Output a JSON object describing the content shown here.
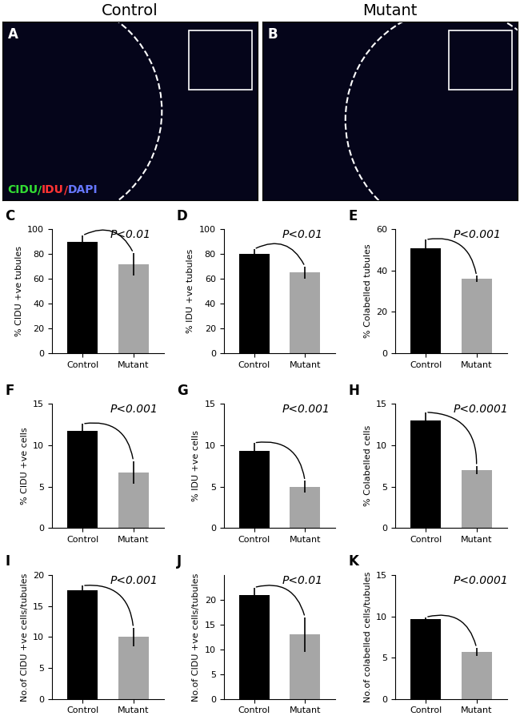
{
  "figure": {
    "image_panels": [
      {
        "panel": "A",
        "title": "Control"
      },
      {
        "panel": "B",
        "title": "Mutant"
      }
    ],
    "stain_label": {
      "parts": [
        "CIDU",
        "/",
        "IDU",
        "/",
        "DAPI"
      ],
      "colors": [
        "#33dd33",
        "#33dd33",
        "#ff3333",
        "#ff3333",
        "#6677ff"
      ]
    }
  },
  "chart_data": [
    {
      "type": "bar",
      "panel": "C",
      "ylabel": "% CIDU +ve tubules",
      "categories": [
        "Control",
        "Mutant"
      ],
      "values": [
        90,
        72
      ],
      "errors": [
        5,
        9
      ],
      "colors": [
        "#000000",
        "#a6a6a6"
      ],
      "ylim": [
        0,
        100
      ],
      "yticks": [
        0,
        20,
        40,
        60,
        80,
        100
      ],
      "annotation": "P<0.01"
    },
    {
      "type": "bar",
      "panel": "D",
      "ylabel": "% IDU +ve tubules",
      "categories": [
        "Control",
        "Mutant"
      ],
      "values": [
        80,
        65
      ],
      "errors": [
        4,
        5
      ],
      "colors": [
        "#000000",
        "#a6a6a6"
      ],
      "ylim": [
        0,
        100
      ],
      "yticks": [
        0,
        20,
        40,
        60,
        80,
        100
      ],
      "annotation": "P<0.01"
    },
    {
      "type": "bar",
      "panel": "E",
      "ylabel": "% Colabelled tubules",
      "categories": [
        "Control",
        "Mutant"
      ],
      "values": [
        51,
        36
      ],
      "errors": [
        4,
        1.5
      ],
      "colors": [
        "#000000",
        "#a6a6a6"
      ],
      "ylim": [
        0,
        60
      ],
      "yticks": [
        0,
        20,
        40,
        60
      ],
      "annotation": "P<0.001"
    },
    {
      "type": "bar",
      "panel": "F",
      "ylabel": "% CIDU +ve cells",
      "categories": [
        "Control",
        "Mutant"
      ],
      "values": [
        11.7,
        6.7
      ],
      "errors": [
        0.9,
        1.4
      ],
      "colors": [
        "#000000",
        "#a6a6a6"
      ],
      "ylim": [
        0,
        15
      ],
      "yticks": [
        0,
        5,
        10,
        15
      ],
      "annotation": "P<0.001"
    },
    {
      "type": "bar",
      "panel": "G",
      "ylabel": "% IDU +ve cells",
      "categories": [
        "Control",
        "Mutant"
      ],
      "values": [
        9.3,
        5.0
      ],
      "errors": [
        1.0,
        0.7
      ],
      "colors": [
        "#000000",
        "#a6a6a6"
      ],
      "ylim": [
        0,
        15
      ],
      "yticks": [
        0,
        5,
        10,
        15
      ],
      "annotation": "P<0.001"
    },
    {
      "type": "bar",
      "panel": "H",
      "ylabel": "% Colabelled cells",
      "categories": [
        "Control",
        "Mutant"
      ],
      "values": [
        13,
        7
      ],
      "errors": [
        1,
        0.5
      ],
      "colors": [
        "#000000",
        "#a6a6a6"
      ],
      "ylim": [
        0,
        15
      ],
      "yticks": [
        0,
        5,
        10,
        15
      ],
      "annotation": "P<0.0001"
    },
    {
      "type": "bar",
      "panel": "I",
      "ylabel": "No.of CIDU +ve cells/tubules",
      "categories": [
        "Control",
        "Mutant"
      ],
      "values": [
        17.5,
        10
      ],
      "errors": [
        0.8,
        1.5
      ],
      "colors": [
        "#000000",
        "#a6a6a6"
      ],
      "ylim": [
        0,
        20
      ],
      "yticks": [
        0,
        5,
        10,
        15,
        20
      ],
      "annotation": "P<0.001"
    },
    {
      "type": "bar",
      "panel": "J",
      "ylabel": "No.of CIDU +ve cells/tubules",
      "categories": [
        "Control",
        "Mutant"
      ],
      "values": [
        21,
        13
      ],
      "errors": [
        1.5,
        3.5
      ],
      "colors": [
        "#000000",
        "#a6a6a6"
      ],
      "ylim": [
        0,
        25
      ],
      "yticks": [
        0,
        5,
        10,
        15,
        20
      ],
      "annotation": "P<0.01"
    },
    {
      "type": "bar",
      "panel": "K",
      "ylabel": "No.of colabelled cells/tubules",
      "categories": [
        "Control",
        "Mutant"
      ],
      "values": [
        9.7,
        5.7
      ],
      "errors": [
        0.2,
        0.5
      ],
      "colors": [
        "#000000",
        "#a6a6a6"
      ],
      "ylim": [
        0,
        15
      ],
      "yticks": [
        0,
        5,
        10,
        15
      ],
      "annotation": "P<0.0001"
    }
  ]
}
